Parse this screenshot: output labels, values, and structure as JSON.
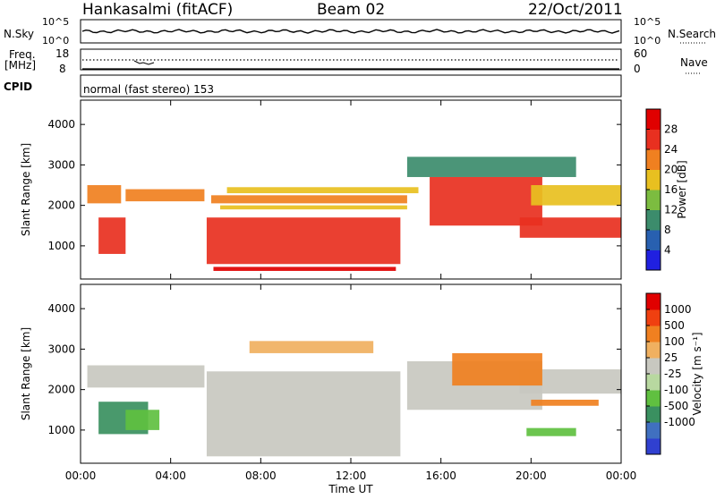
{
  "header": {
    "title": "Hankasalmi (fitACF)",
    "beam": "Beam 02",
    "date": "22/Oct/2011"
  },
  "aux": {
    "nsky_label": "N.Sky",
    "nsky_ticks": [
      "10^5",
      "10^0"
    ],
    "nsearch_label": "N.Search",
    "nsearch_ticks": [
      "10^5",
      "10^0"
    ],
    "freq_label_1": "Freq.",
    "freq_label_2": "[MHz]",
    "freq_ticks": [
      "18",
      "8"
    ],
    "nave_label": "Nave",
    "nave_ticks": [
      "60",
      "0"
    ],
    "cpid_label": "CPID",
    "cpid_value": "normal (fast stereo) 153"
  },
  "chart_data": [
    {
      "type": "heatmap",
      "panel": "power",
      "ylabel": "Slant Range [km]",
      "ylim": [
        180,
        4600
      ],
      "yticks": [
        1000,
        2000,
        3000,
        4000
      ],
      "xlim": [
        0,
        24
      ],
      "colorbar_label": "Power [dB]",
      "colorbar_ticks": [
        "4",
        "8",
        "12",
        "16",
        "20",
        "24",
        "28"
      ],
      "colorbar_range": [
        0,
        32
      ],
      "colorbar_colors": [
        "#2020e0",
        "#2860b0",
        "#3c8c6c",
        "#7cbc40",
        "#e8c020",
        "#f08020",
        "#e83020",
        "#e00000"
      ],
      "bands": [
        {
          "t0": 0.8,
          "t1": 2.0,
          "r0": 800,
          "r1": 1700,
          "value": 26
        },
        {
          "t0": 5.6,
          "t1": 14.2,
          "r0": 550,
          "r1": 1700,
          "value": 27
        },
        {
          "t0": 5.9,
          "t1": 14.0,
          "r0": 380,
          "r1": 480,
          "value": 30
        },
        {
          "t0": 5.8,
          "t1": 14.5,
          "r0": 2050,
          "r1": 2250,
          "value": 23
        },
        {
          "t0": 6.2,
          "t1": 14.5,
          "r0": 1900,
          "r1": 2000,
          "value": 18
        },
        {
          "t0": 6.5,
          "t1": 15.0,
          "r0": 2300,
          "r1": 2450,
          "value": 17
        },
        {
          "t0": 0.3,
          "t1": 1.8,
          "r0": 2050,
          "r1": 2500,
          "value": 20
        },
        {
          "t0": 2.0,
          "t1": 5.5,
          "r0": 2100,
          "r1": 2400,
          "value": 22
        },
        {
          "t0": 15.5,
          "t1": 20.5,
          "r0": 1500,
          "r1": 2700,
          "value": 25
        },
        {
          "t0": 19.5,
          "t1": 24.0,
          "r0": 1200,
          "r1": 1700,
          "value": 26
        },
        {
          "t0": 20.0,
          "t1": 24.0,
          "r0": 2000,
          "r1": 2500,
          "value": 18
        },
        {
          "t0": 14.5,
          "t1": 22.0,
          "r0": 2700,
          "r1": 3200,
          "value": 10
        }
      ]
    },
    {
      "type": "heatmap",
      "panel": "velocity",
      "ylabel": "Slant Range [km]",
      "xlabel": "Time UT",
      "xticks": [
        "00:00",
        "04:00",
        "08:00",
        "12:00",
        "16:00",
        "20:00",
        "00:00"
      ],
      "xtick_hours": [
        0,
        4,
        8,
        12,
        16,
        20,
        24
      ],
      "ylim": [
        180,
        4600
      ],
      "yticks": [
        1000,
        2000,
        3000,
        4000
      ],
      "xlim": [
        0,
        24
      ],
      "colorbar_label": "Velocity [m s⁻¹]",
      "colorbar_ticks": [
        "1000",
        "500",
        "100",
        "25",
        "-25",
        "-100",
        "-500",
        "-1000"
      ],
      "colorbar_colors": [
        "#3040d0",
        "#4070c0",
        "#3a9060",
        "#60c040",
        "#b8d8a0",
        "#c8c8c0",
        "#f0b060",
        "#f08020",
        "#f04010",
        "#e00000"
      ],
      "bands": [
        {
          "t0": 0.3,
          "t1": 5.5,
          "r0": 2050,
          "r1": 2600,
          "value": "#c8c8c0"
        },
        {
          "t0": 5.6,
          "t1": 14.2,
          "r0": 350,
          "r1": 2450,
          "value": "#c8c8c0"
        },
        {
          "t0": 14.5,
          "t1": 20.5,
          "r0": 1500,
          "r1": 2700,
          "value": "#c8c8c0"
        },
        {
          "t0": 19.5,
          "t1": 24.0,
          "r0": 1900,
          "r1": 2500,
          "value": "#c8c8c0"
        },
        {
          "t0": 0.8,
          "t1": 3.0,
          "r0": 900,
          "r1": 1700,
          "value": "#3a9060"
        },
        {
          "t0": 2.0,
          "t1": 3.5,
          "r0": 1000,
          "r1": 1500,
          "value": "#60c040"
        },
        {
          "t0": 16.5,
          "t1": 20.5,
          "r0": 2100,
          "r1": 2900,
          "value": "#f08020"
        },
        {
          "t0": 19.8,
          "t1": 22.0,
          "r0": 850,
          "r1": 1050,
          "value": "#60c040"
        },
        {
          "t0": 20.0,
          "t1": 23.0,
          "r0": 1600,
          "r1": 1750,
          "value": "#f08020"
        },
        {
          "t0": 7.5,
          "t1": 13.0,
          "r0": 2900,
          "r1": 3200,
          "value": "#f0b060"
        }
      ]
    }
  ]
}
